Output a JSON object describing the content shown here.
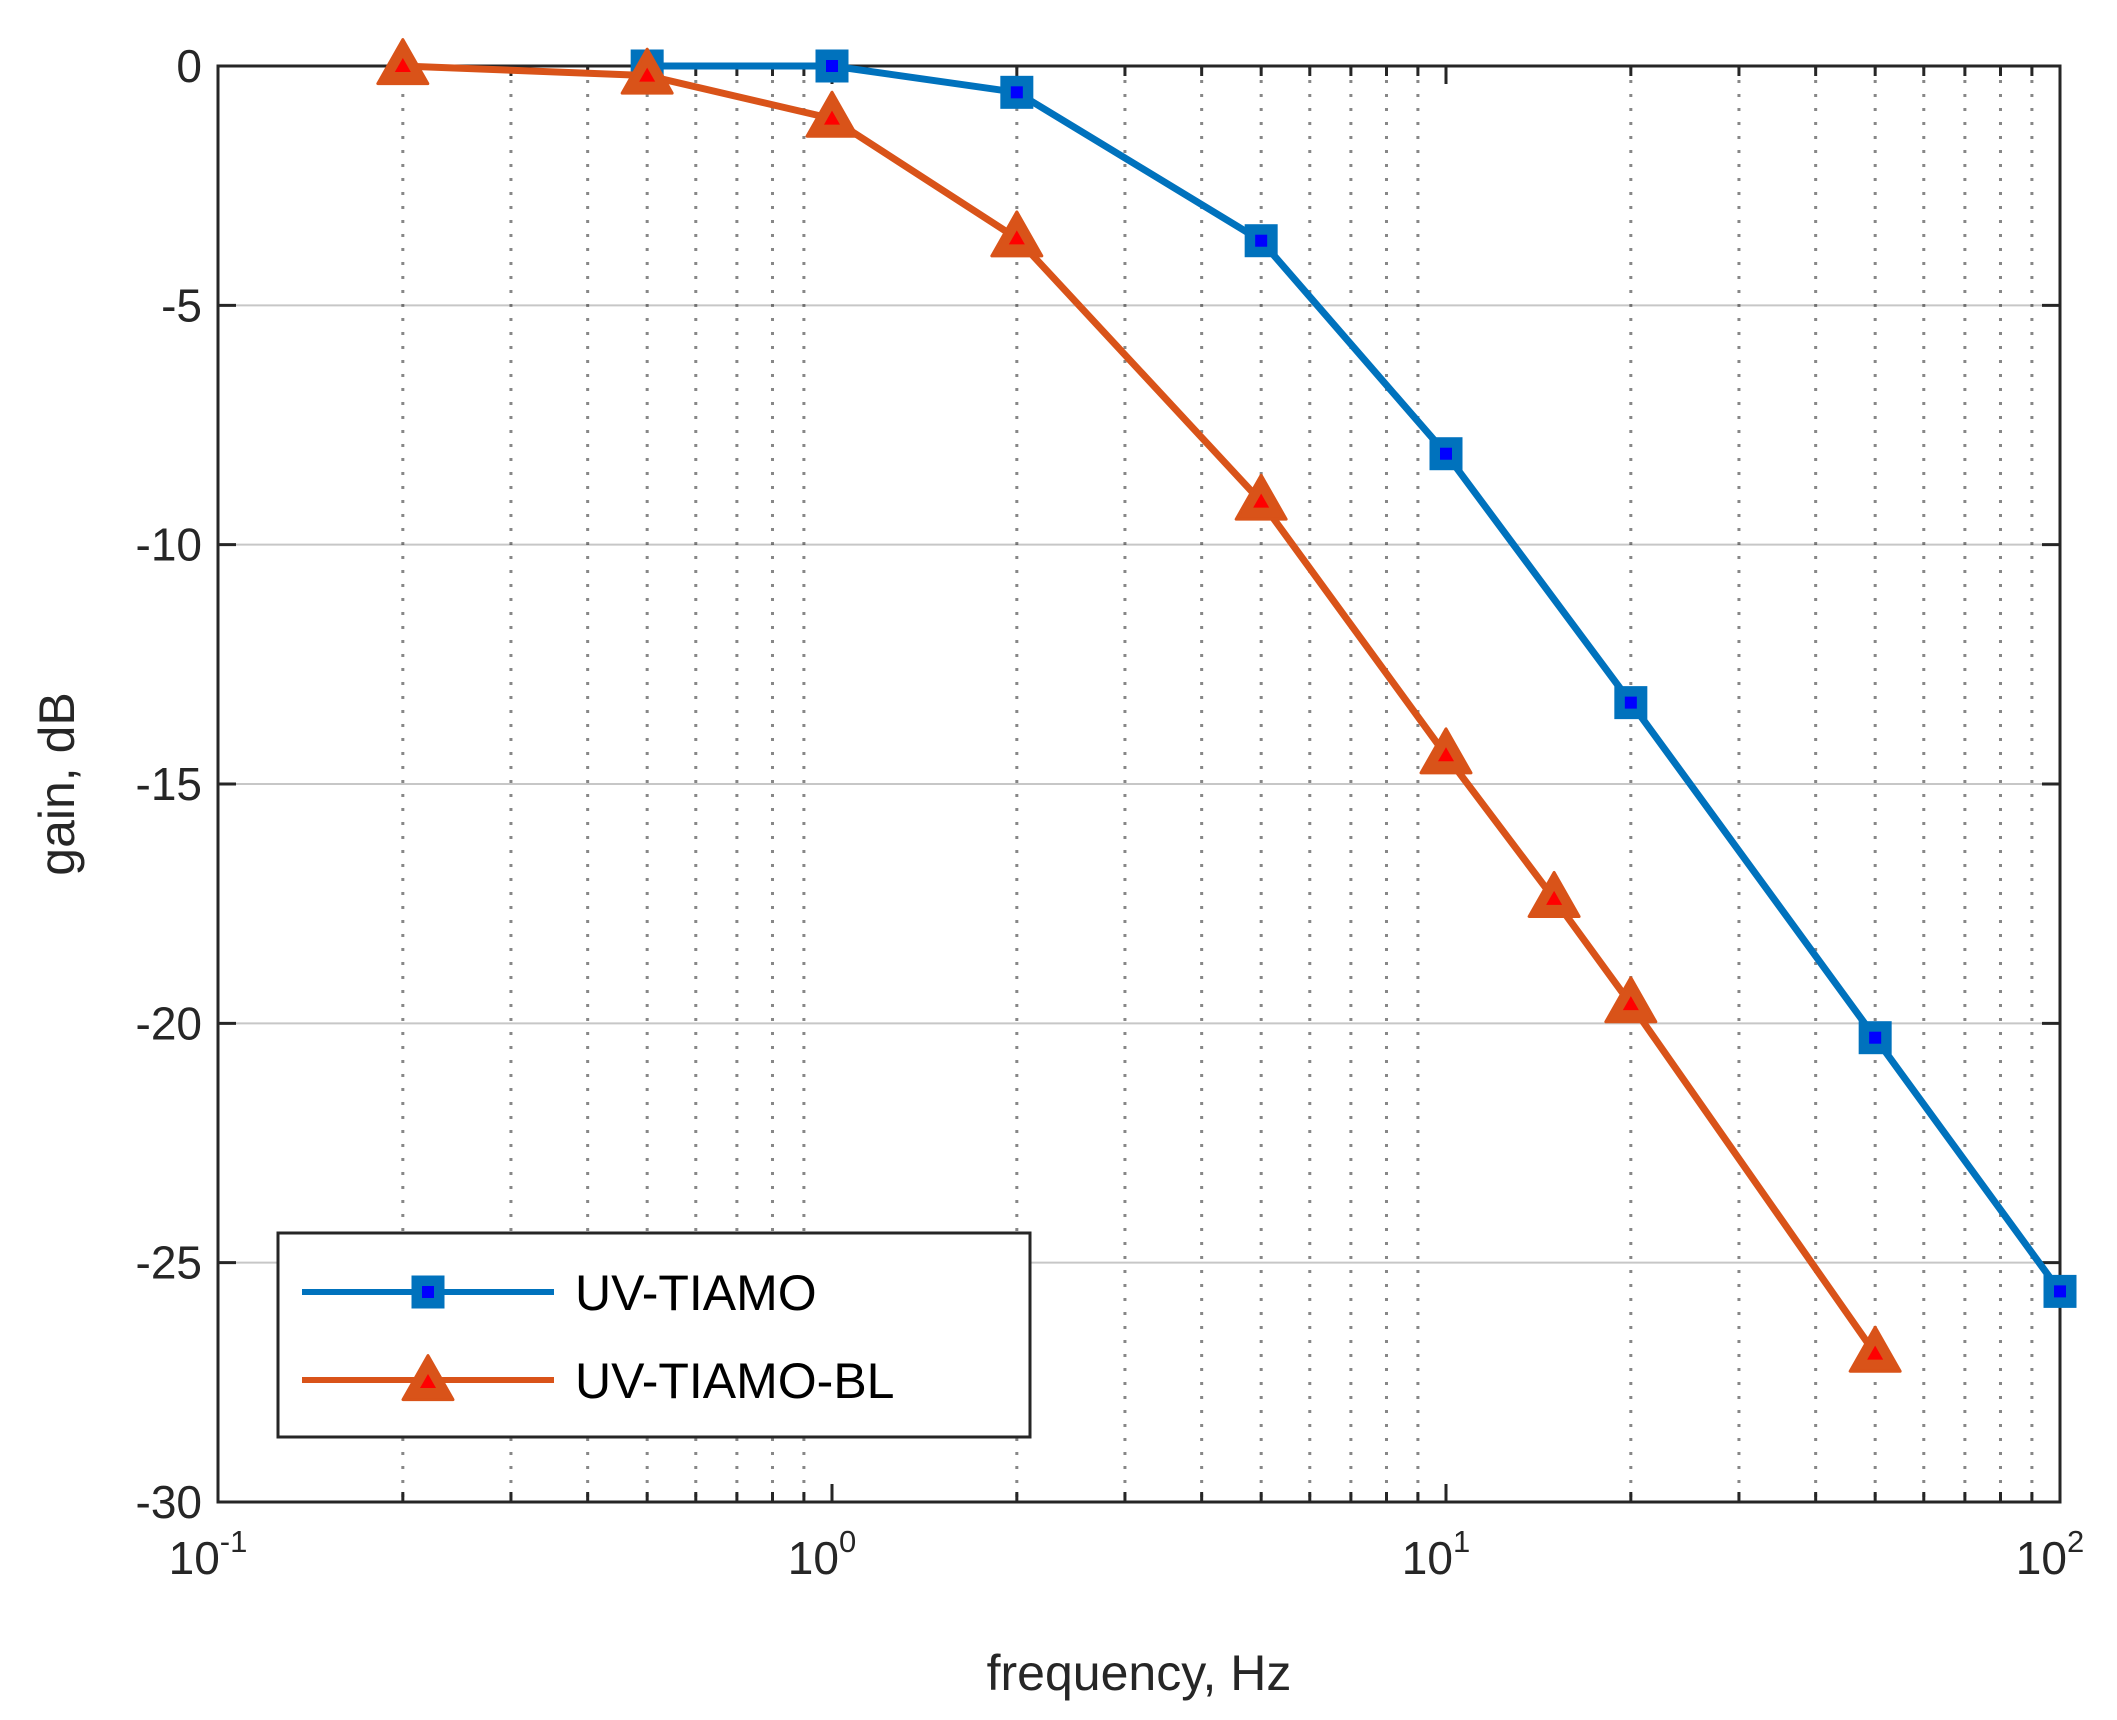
{
  "chart_data": {
    "type": "line",
    "xlabel": "frequency, Hz",
    "ylabel": "gain, dB",
    "xscale": "log",
    "xlim": [
      0.1,
      100
    ],
    "ylim": [
      -30,
      0
    ],
    "x_ticks": [
      {
        "base": "10",
        "exp": "-1",
        "value": 0.1
      },
      {
        "base": "10",
        "exp": "0",
        "value": 1
      },
      {
        "base": "10",
        "exp": "1",
        "value": 10
      },
      {
        "base": "10",
        "exp": "2",
        "value": 100
      }
    ],
    "y_ticks": [
      {
        "label": "0",
        "value": 0
      },
      {
        "label": "-5",
        "value": -5
      },
      {
        "label": "-10",
        "value": -10
      },
      {
        "label": "-15",
        "value": -15
      },
      {
        "label": "-20",
        "value": -20
      },
      {
        "label": "-25",
        "value": -25
      },
      {
        "label": "-30",
        "value": -30
      }
    ],
    "legend_position": "bottom-left",
    "series": [
      {
        "name": "UV-TIAMO",
        "color": "#0072BD",
        "marker": "square",
        "marker_fill": "#0000FF",
        "x": [
          0.5,
          1,
          2,
          5,
          10,
          20,
          50,
          100
        ],
        "y": [
          0,
          0,
          -0.55,
          -3.65,
          -8.1,
          -13.3,
          -20.3,
          -25.6
        ]
      },
      {
        "name": "UV-TIAMO-BL",
        "color": "#D95319",
        "marker": "triangle",
        "marker_fill": "#FF0000",
        "x": [
          0.2,
          0.5,
          1,
          2,
          5,
          10,
          15,
          20,
          50
        ],
        "y": [
          0,
          -0.2,
          -1.1,
          -3.6,
          -9.1,
          -14.4,
          -17.4,
          -19.6,
          -26.9
        ]
      }
    ]
  }
}
